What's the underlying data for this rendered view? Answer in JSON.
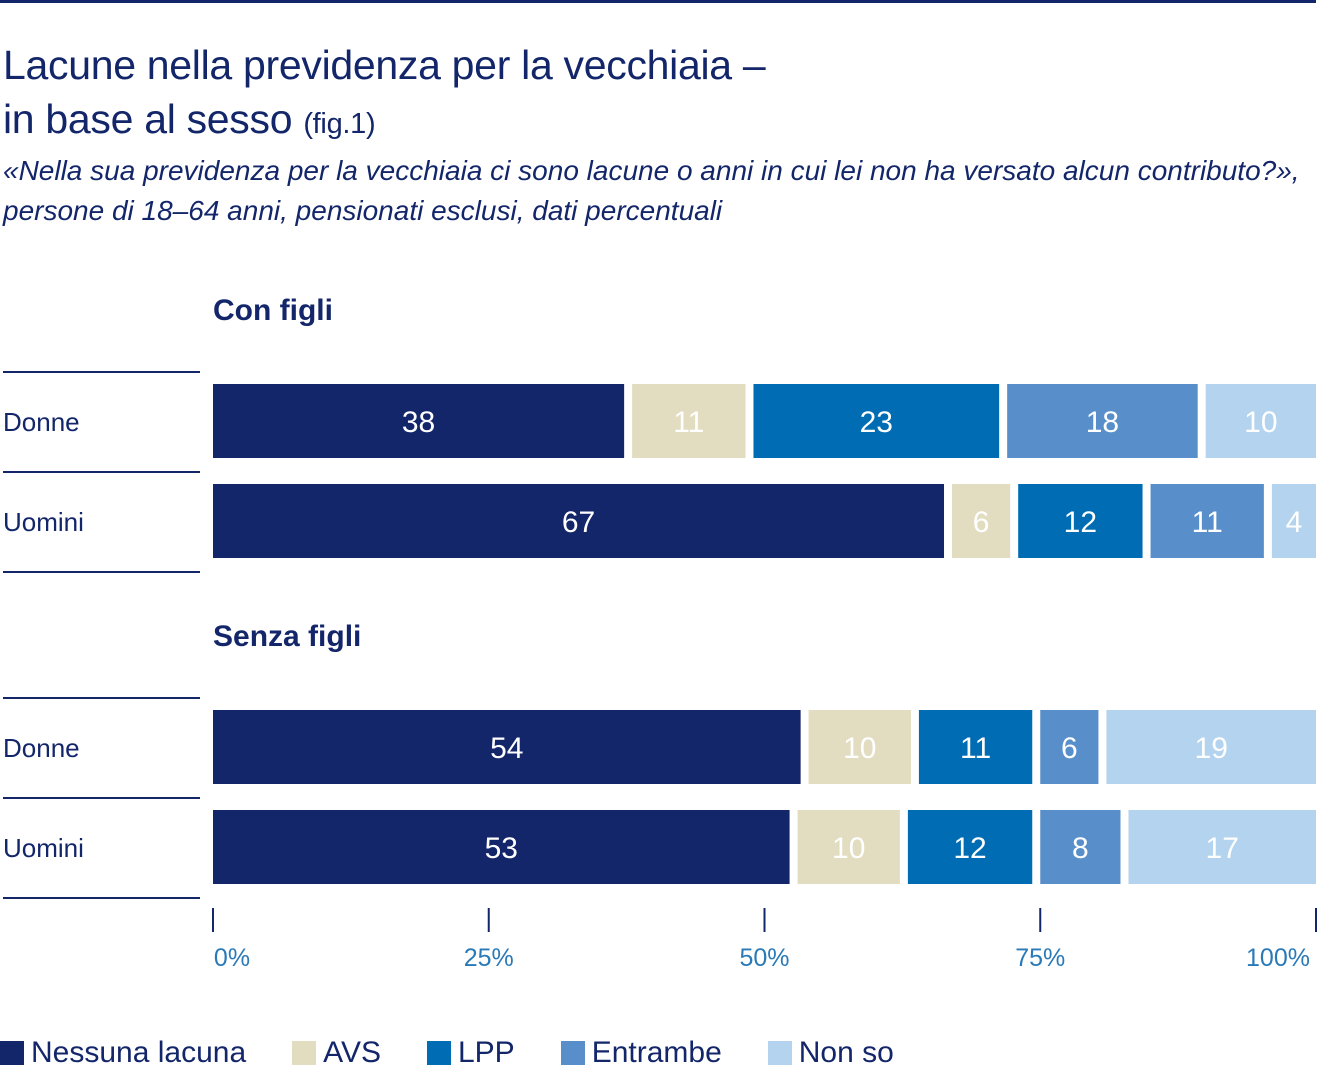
{
  "title": {
    "main_line1": "Lacune nella previdenza per la vecchiaia –",
    "main_line2": "in base al sesso",
    "fig": "(fig.1)",
    "subtitle": "«Nella sua previdenza per la vecchiaia ci sono lacune o anni in cui lei non ha versato alcun contributo?», persone di 18–64 anni, pensionati esclusi, dati percentuali"
  },
  "chart_data": {
    "type": "bar",
    "orientation": "horizontal",
    "stacked": true,
    "title": "Lacune nella previdenza per la vecchiaia – in base al sesso (fig.1)",
    "xlabel": "",
    "ylabel": "",
    "xlim": [
      0,
      100
    ],
    "x_ticks": [
      "0%",
      "25%",
      "50%",
      "75%",
      "100%"
    ],
    "legend_position": "bottom-left",
    "series_names": [
      "Nessuna lacuna",
      "AVS",
      "LPP",
      "Entrambe",
      "Non so"
    ],
    "colors": [
      "#13266a",
      "#e2dcc0",
      "#006cb3",
      "#588fca",
      "#b3d3ee"
    ],
    "groups": [
      {
        "name": "Con figli",
        "categories": [
          "Donne",
          "Uomini"
        ],
        "series": [
          {
            "name": "Nessuna lacuna",
            "values": [
              38,
              67
            ]
          },
          {
            "name": "AVS",
            "values": [
              11,
              6
            ]
          },
          {
            "name": "LPP",
            "values": [
              23,
              12
            ]
          },
          {
            "name": "Entrambe",
            "values": [
              18,
              11
            ]
          },
          {
            "name": "Non so",
            "values": [
              10,
              4
            ]
          }
        ]
      },
      {
        "name": "Senza figli",
        "categories": [
          "Donne",
          "Uomini"
        ],
        "series": [
          {
            "name": "Nessuna lacuna",
            "values": [
              54,
              53
            ]
          },
          {
            "name": "AVS",
            "values": [
              10,
              10
            ]
          },
          {
            "name": "LPP",
            "values": [
              11,
              12
            ]
          },
          {
            "name": "Entrambe",
            "values": [
              6,
              8
            ]
          },
          {
            "name": "Non so",
            "values": [
              19,
              17
            ]
          }
        ]
      }
    ]
  }
}
